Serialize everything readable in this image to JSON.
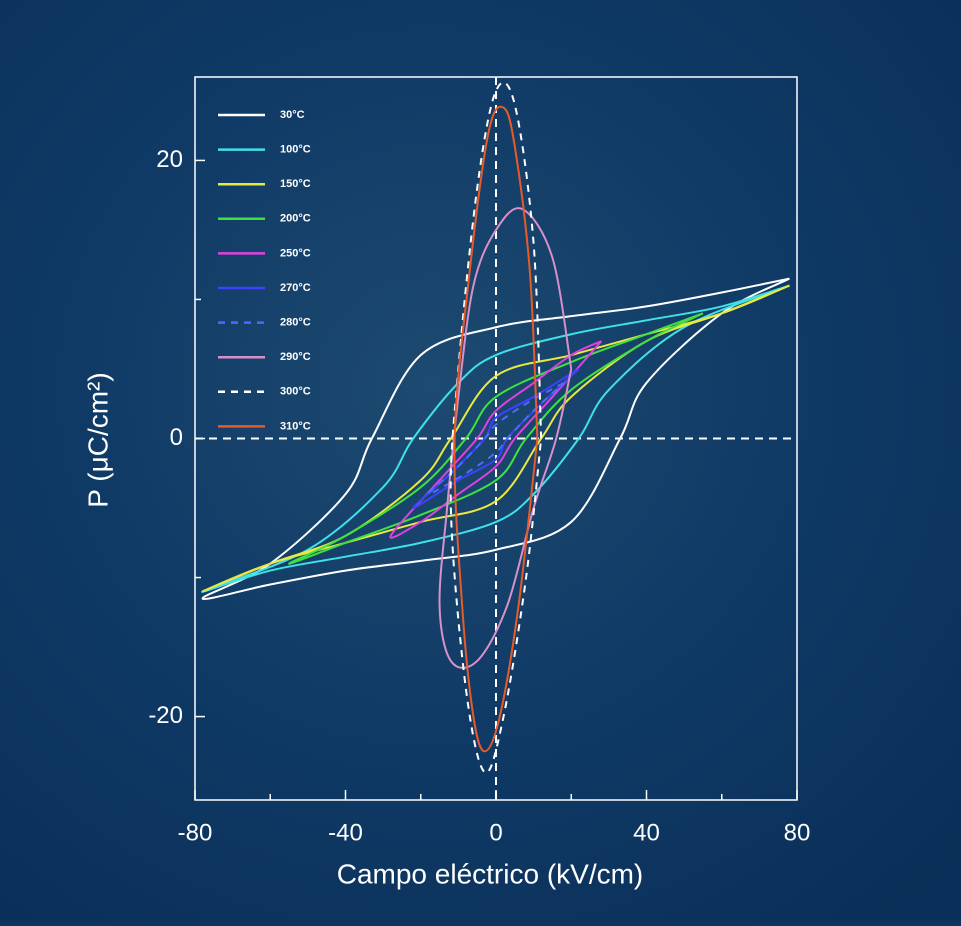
{
  "chart_data": {
    "type": "line",
    "xlabel": "Campo eléctrico (kV/cm)",
    "ylabel": "P (μC/cm²)",
    "xlim": [
      -80,
      80
    ],
    "ylim": [
      -26,
      26
    ],
    "xticks": [
      -80,
      -40,
      0,
      40,
      80
    ],
    "xminor": [
      -60,
      -20,
      20,
      60
    ],
    "yticks": [
      -20,
      0,
      20
    ],
    "yminor": [
      -10,
      10
    ],
    "zero_lines": true,
    "legend": "upper left",
    "series": [
      {
        "name": "30°C",
        "color": "#ffffff",
        "dash": false,
        "x": [
          78,
          60,
          40,
          20,
          0,
          -20,
          -33,
          -40,
          -60,
          -78,
          -60,
          -40,
          -20,
          0,
          20,
          33,
          40,
          60,
          78
        ],
        "values": [
          11.5,
          10.5,
          9.5,
          8.8,
          8,
          6,
          0,
          -4,
          -9,
          -11.5,
          -10.5,
          -9.5,
          -8.8,
          -8,
          -6,
          0,
          4,
          9,
          11.5
        ]
      },
      {
        "name": "100°C",
        "color": "#40e0e8",
        "dash": false,
        "x": [
          78,
          60,
          40,
          20,
          0,
          -10,
          -22,
          -30,
          -50,
          -78,
          -60,
          -40,
          -20,
          0,
          10,
          22,
          30,
          50,
          78
        ],
        "values": [
          11,
          9.5,
          8.5,
          7.5,
          6,
          4,
          0,
          -3.5,
          -8,
          -11,
          -9.5,
          -8.5,
          -7.5,
          -6,
          -4,
          0,
          3.5,
          8,
          11
        ]
      },
      {
        "name": "150°C",
        "color": "#e8e840",
        "dash": false,
        "x": [
          78,
          60,
          40,
          20,
          0,
          -12,
          -20,
          -40,
          -60,
          -78,
          -60,
          -40,
          -20,
          0,
          12,
          20,
          40,
          60,
          78
        ],
        "values": [
          11,
          9,
          7.5,
          6,
          4.5,
          0,
          -3,
          -7,
          -9,
          -11,
          -9,
          -7.5,
          -6,
          -4.5,
          0,
          3,
          7,
          9,
          11
        ]
      },
      {
        "name": "200°C",
        "color": "#40e040",
        "dash": false,
        "x": [
          55,
          40,
          20,
          0,
          -8,
          -20,
          -40,
          -55,
          -40,
          -20,
          0,
          8,
          20,
          40,
          55
        ],
        "values": [
          9,
          7.5,
          5.5,
          3,
          0,
          -3.5,
          -7,
          -9,
          -7.5,
          -5.5,
          -3,
          0,
          3.5,
          7,
          9
        ]
      },
      {
        "name": "250°C",
        "color": "#e040e0",
        "dash": false,
        "x": [
          28,
          20,
          10,
          0,
          -5,
          -15,
          -28,
          -20,
          -10,
          0,
          5,
          15,
          28
        ],
        "values": [
          7,
          6,
          4,
          2,
          0,
          -3,
          -7,
          -6,
          -4,
          -2,
          0,
          3,
          7
        ]
      },
      {
        "name": "270°C",
        "color": "#4040ff",
        "dash": false,
        "x": [
          22,
          10,
          0,
          -3,
          -12,
          -22,
          -10,
          0,
          3,
          12,
          22
        ],
        "values": [
          5,
          3,
          1.5,
          0,
          -2.5,
          -5,
          -3,
          -1.5,
          0,
          2.5,
          5
        ]
      },
      {
        "name": "280°C",
        "color": "#4a6cff",
        "dash": true,
        "x": [
          18,
          8,
          0,
          -3,
          -10,
          -18,
          -8,
          0,
          3,
          10,
          18
        ],
        "values": [
          4,
          2.5,
          1,
          0,
          -2,
          -4,
          -2.5,
          -1,
          0,
          2,
          4
        ]
      },
      {
        "name": "290°C",
        "color": "#d890c8",
        "dash": false,
        "x": [
          20,
          15,
          7,
          0,
          -6,
          -10,
          -13,
          -15,
          -12,
          -5,
          3,
          10,
          16,
          20
        ],
        "values": [
          5,
          13,
          16.5,
          15,
          11,
          3,
          -5,
          -12,
          -16,
          -16,
          -12,
          -5,
          0,
          5
        ]
      },
      {
        "name": "300°C",
        "color": "#ffffff",
        "dash": true,
        "x": [
          12,
          10,
          5,
          0,
          -5,
          -10,
          -12,
          -8,
          -3,
          2,
          8,
          12
        ],
        "values": [
          0,
          14,
          24,
          25,
          18,
          5,
          -5,
          -18,
          -24,
          -20,
          -10,
          0
        ]
      },
      {
        "name": "310°C",
        "color": "#e85a28",
        "dash": false,
        "x": [
          11,
          9,
          5,
          2,
          -2,
          -7,
          -11,
          -9,
          -6,
          -3,
          1,
          6,
          11
        ],
        "values": [
          0,
          12,
          21,
          23.8,
          22,
          12,
          0,
          -12,
          -20,
          -22.5,
          -20,
          -12,
          0
        ]
      }
    ]
  }
}
